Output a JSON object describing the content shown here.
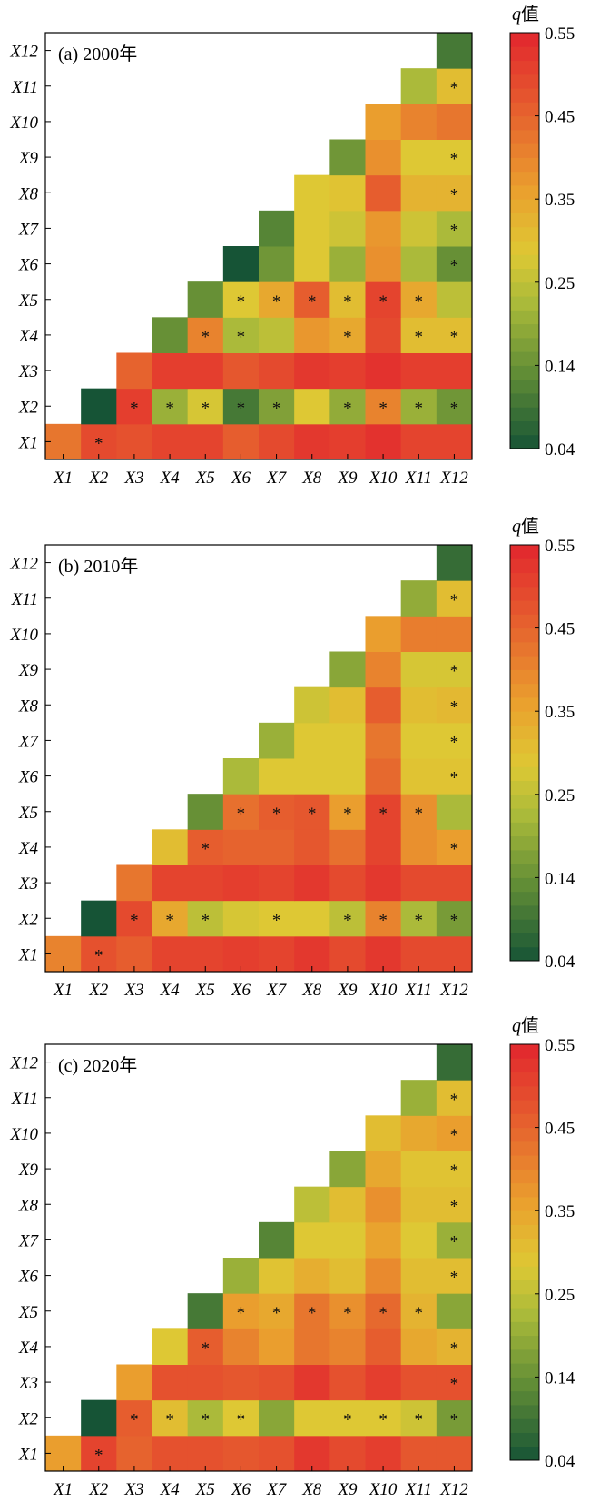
{
  "chart_data": [
    {
      "type": "heatmap",
      "title": "(a) 2000年",
      "xlabels": [
        "X1",
        "X2",
        "X3",
        "X4",
        "X5",
        "X6",
        "X7",
        "X8",
        "X9",
        "X10",
        "X11",
        "X12"
      ],
      "ylabels": [
        "X1",
        "X2",
        "X3",
        "X4",
        "X5",
        "X6",
        "X7",
        "X8",
        "X9",
        "X10",
        "X11",
        "X12"
      ],
      "colorbar": {
        "title_var": "q",
        "title_unit": "值",
        "ticks": [
          "0.55",
          "0.45",
          "0.35",
          "0.25",
          "0.14",
          "0.04"
        ],
        "range": [
          0.04,
          0.55
        ]
      },
      "rows": [
        {
          "y": "X1",
          "values": [
            0.42,
            0.49,
            0.48,
            0.5,
            0.5,
            0.46,
            0.49,
            0.52,
            0.51,
            0.53,
            0.5,
            0.5
          ],
          "stars": [
            2
          ]
        },
        {
          "y": "X2",
          "values": [
            null,
            0.04,
            0.51,
            0.2,
            0.27,
            0.1,
            0.17,
            0.28,
            0.19,
            0.4,
            0.2,
            0.15
          ],
          "stars": [
            3,
            4,
            5,
            6,
            7,
            9,
            10,
            11,
            12
          ]
        },
        {
          "y": "X3",
          "values": [
            null,
            null,
            0.45,
            0.51,
            0.51,
            0.47,
            0.49,
            0.52,
            0.51,
            0.53,
            0.51,
            0.51
          ],
          "stars": []
        },
        {
          "y": "X4",
          "values": [
            null,
            null,
            null,
            0.14,
            0.4,
            0.22,
            0.24,
            0.37,
            0.34,
            0.49,
            0.3,
            0.3
          ],
          "stars": [
            5,
            6,
            9,
            11,
            12
          ]
        },
        {
          "y": "X5",
          "values": [
            null,
            null,
            null,
            null,
            0.14,
            0.28,
            0.34,
            0.46,
            0.3,
            0.5,
            0.34,
            0.24
          ],
          "stars": [
            6,
            7,
            8,
            9,
            10,
            11
          ]
        },
        {
          "y": "X6",
          "values": [
            null,
            null,
            null,
            null,
            null,
            0.04,
            0.15,
            0.28,
            0.2,
            0.38,
            0.22,
            0.14
          ],
          "stars": [
            12
          ]
        },
        {
          "y": "X7",
          "values": [
            null,
            null,
            null,
            null,
            null,
            null,
            0.12,
            0.28,
            0.26,
            0.37,
            0.26,
            0.22
          ],
          "stars": [
            12
          ]
        },
        {
          "y": "X8",
          "values": [
            null,
            null,
            null,
            null,
            null,
            null,
            null,
            0.28,
            0.29,
            0.46,
            0.32,
            0.32
          ],
          "stars": [
            12
          ]
        },
        {
          "y": "X9",
          "values": [
            null,
            null,
            null,
            null,
            null,
            null,
            null,
            null,
            0.15,
            0.38,
            0.28,
            0.28
          ],
          "stars": [
            12
          ]
        },
        {
          "y": "X10",
          "values": [
            null,
            null,
            null,
            null,
            null,
            null,
            null,
            null,
            null,
            0.36,
            0.4,
            0.42
          ],
          "stars": []
        },
        {
          "y": "X11",
          "values": [
            null,
            null,
            null,
            null,
            null,
            null,
            null,
            null,
            null,
            null,
            0.22,
            0.3
          ],
          "stars": [
            12
          ]
        },
        {
          "y": "X12",
          "values": [
            null,
            null,
            null,
            null,
            null,
            null,
            null,
            null,
            null,
            null,
            null,
            0.1
          ],
          "stars": []
        }
      ]
    },
    {
      "type": "heatmap",
      "title": "(b) 2010年",
      "xlabels": [
        "X1",
        "X2",
        "X3",
        "X4",
        "X5",
        "X6",
        "X7",
        "X8",
        "X9",
        "X10",
        "X11",
        "X12"
      ],
      "ylabels": [
        "X1",
        "X2",
        "X3",
        "X4",
        "X5",
        "X6",
        "X7",
        "X8",
        "X9",
        "X10",
        "X11",
        "X12"
      ],
      "colorbar": {
        "title_var": "q",
        "title_unit": "值",
        "ticks": [
          "0.55",
          "0.45",
          "0.35",
          "0.25",
          "0.14",
          "0.04"
        ],
        "range": [
          0.04,
          0.55
        ]
      },
      "rows": [
        {
          "y": "X1",
          "values": [
            0.4,
            0.48,
            0.46,
            0.5,
            0.5,
            0.51,
            0.5,
            0.52,
            0.49,
            0.52,
            0.49,
            0.49
          ],
          "stars": [
            2
          ]
        },
        {
          "y": "X2",
          "values": [
            null,
            0.04,
            0.49,
            0.34,
            0.24,
            0.27,
            0.28,
            0.28,
            0.24,
            0.4,
            0.22,
            0.16
          ],
          "stars": [
            3,
            4,
            5,
            7,
            9,
            10,
            11,
            12
          ]
        },
        {
          "y": "X3",
          "values": [
            null,
            null,
            0.42,
            0.5,
            0.5,
            0.51,
            0.5,
            0.52,
            0.49,
            0.52,
            0.49,
            0.49
          ],
          "stars": []
        },
        {
          "y": "X4",
          "values": [
            null,
            null,
            null,
            0.3,
            0.46,
            0.45,
            0.45,
            0.47,
            0.43,
            0.5,
            0.38,
            0.36
          ],
          "stars": [
            5,
            12
          ]
        },
        {
          "y": "X5",
          "values": [
            null,
            null,
            null,
            null,
            0.14,
            0.43,
            0.46,
            0.47,
            0.36,
            0.5,
            0.38,
            0.22
          ],
          "stars": [
            6,
            7,
            8,
            9,
            10,
            11
          ]
        },
        {
          "y": "X6",
          "values": [
            null,
            null,
            null,
            null,
            null,
            0.22,
            0.28,
            0.28,
            0.28,
            0.44,
            0.29,
            0.29
          ],
          "stars": [
            12
          ]
        },
        {
          "y": "X7",
          "values": [
            null,
            null,
            null,
            null,
            null,
            null,
            0.2,
            0.28,
            0.28,
            0.42,
            0.28,
            0.28
          ],
          "stars": [
            12
          ]
        },
        {
          "y": "X8",
          "values": [
            null,
            null,
            null,
            null,
            null,
            null,
            null,
            0.26,
            0.3,
            0.46,
            0.3,
            0.31
          ],
          "stars": [
            12
          ]
        },
        {
          "y": "X9",
          "values": [
            null,
            null,
            null,
            null,
            null,
            null,
            null,
            null,
            0.18,
            0.4,
            0.27,
            0.27
          ],
          "stars": [
            12
          ]
        },
        {
          "y": "X10",
          "values": [
            null,
            null,
            null,
            null,
            null,
            null,
            null,
            null,
            null,
            0.36,
            0.41,
            0.41
          ],
          "stars": []
        },
        {
          "y": "X11",
          "values": [
            null,
            null,
            null,
            null,
            null,
            null,
            null,
            null,
            null,
            null,
            0.19,
            0.3
          ],
          "stars": [
            12
          ]
        },
        {
          "y": "X12",
          "values": [
            null,
            null,
            null,
            null,
            null,
            null,
            null,
            null,
            null,
            null,
            null,
            0.08
          ],
          "stars": []
        }
      ]
    },
    {
      "type": "heatmap",
      "title": "(c) 2020年",
      "xlabels": [
        "X1",
        "X2",
        "X3",
        "X4",
        "X5",
        "X6",
        "X7",
        "X8",
        "X9",
        "X10",
        "X11",
        "X12"
      ],
      "ylabels": [
        "X1",
        "X2",
        "X3",
        "X4",
        "X5",
        "X6",
        "X7",
        "X8",
        "X9",
        "X10",
        "X11",
        "X12"
      ],
      "colorbar": {
        "title_var": "q",
        "title_unit": "值",
        "ticks": [
          "0.55",
          "0.45",
          "0.35",
          "0.25",
          "0.14",
          "0.04"
        ],
        "range": [
          0.04,
          0.55
        ]
      },
      "rows": [
        {
          "y": "X1",
          "values": [
            0.36,
            0.5,
            0.45,
            0.48,
            0.48,
            0.47,
            0.48,
            0.52,
            0.49,
            0.51,
            0.47,
            0.47
          ],
          "stars": [
            2
          ]
        },
        {
          "y": "X2",
          "values": [
            null,
            0.04,
            0.46,
            0.3,
            0.22,
            0.28,
            0.18,
            0.28,
            0.28,
            0.28,
            0.26,
            0.16
          ],
          "stars": [
            3,
            4,
            5,
            6,
            9,
            10,
            11,
            12
          ]
        },
        {
          "y": "X3",
          "values": [
            null,
            null,
            0.36,
            0.48,
            0.48,
            0.47,
            0.48,
            0.52,
            0.48,
            0.51,
            0.48,
            0.48
          ],
          "stars": [
            12
          ]
        },
        {
          "y": "X4",
          "values": [
            null,
            null,
            null,
            0.28,
            0.46,
            0.4,
            0.36,
            0.42,
            0.4,
            0.46,
            0.34,
            0.32
          ],
          "stars": [
            5,
            12
          ]
        },
        {
          "y": "X5",
          "values": [
            null,
            null,
            null,
            null,
            0.1,
            0.36,
            0.34,
            0.42,
            0.38,
            0.44,
            0.32,
            0.18
          ],
          "stars": [
            6,
            7,
            8,
            9,
            10,
            11
          ]
        },
        {
          "y": "X6",
          "values": [
            null,
            null,
            null,
            null,
            null,
            0.2,
            0.29,
            0.33,
            0.3,
            0.39,
            0.3,
            0.3
          ],
          "stars": [
            12
          ]
        },
        {
          "y": "X7",
          "values": [
            null,
            null,
            null,
            null,
            null,
            null,
            0.12,
            0.28,
            0.28,
            0.35,
            0.28,
            0.2
          ],
          "stars": [
            12
          ]
        },
        {
          "y": "X8",
          "values": [
            null,
            null,
            null,
            null,
            null,
            null,
            null,
            0.24,
            0.3,
            0.38,
            0.3,
            0.3
          ],
          "stars": [
            12
          ]
        },
        {
          "y": "X9",
          "values": [
            null,
            null,
            null,
            null,
            null,
            null,
            null,
            null,
            0.18,
            0.34,
            0.29,
            0.29
          ],
          "stars": [
            12
          ]
        },
        {
          "y": "X10",
          "values": [
            null,
            null,
            null,
            null,
            null,
            null,
            null,
            null,
            null,
            0.3,
            0.34,
            0.36
          ],
          "stars": [
            12
          ]
        },
        {
          "y": "X11",
          "values": [
            null,
            null,
            null,
            null,
            null,
            null,
            null,
            null,
            null,
            null,
            0.2,
            0.3
          ],
          "stars": [
            12
          ]
        },
        {
          "y": "X12",
          "values": [
            null,
            null,
            null,
            null,
            null,
            null,
            null,
            null,
            null,
            null,
            null,
            0.08
          ],
          "stars": []
        }
      ]
    }
  ]
}
